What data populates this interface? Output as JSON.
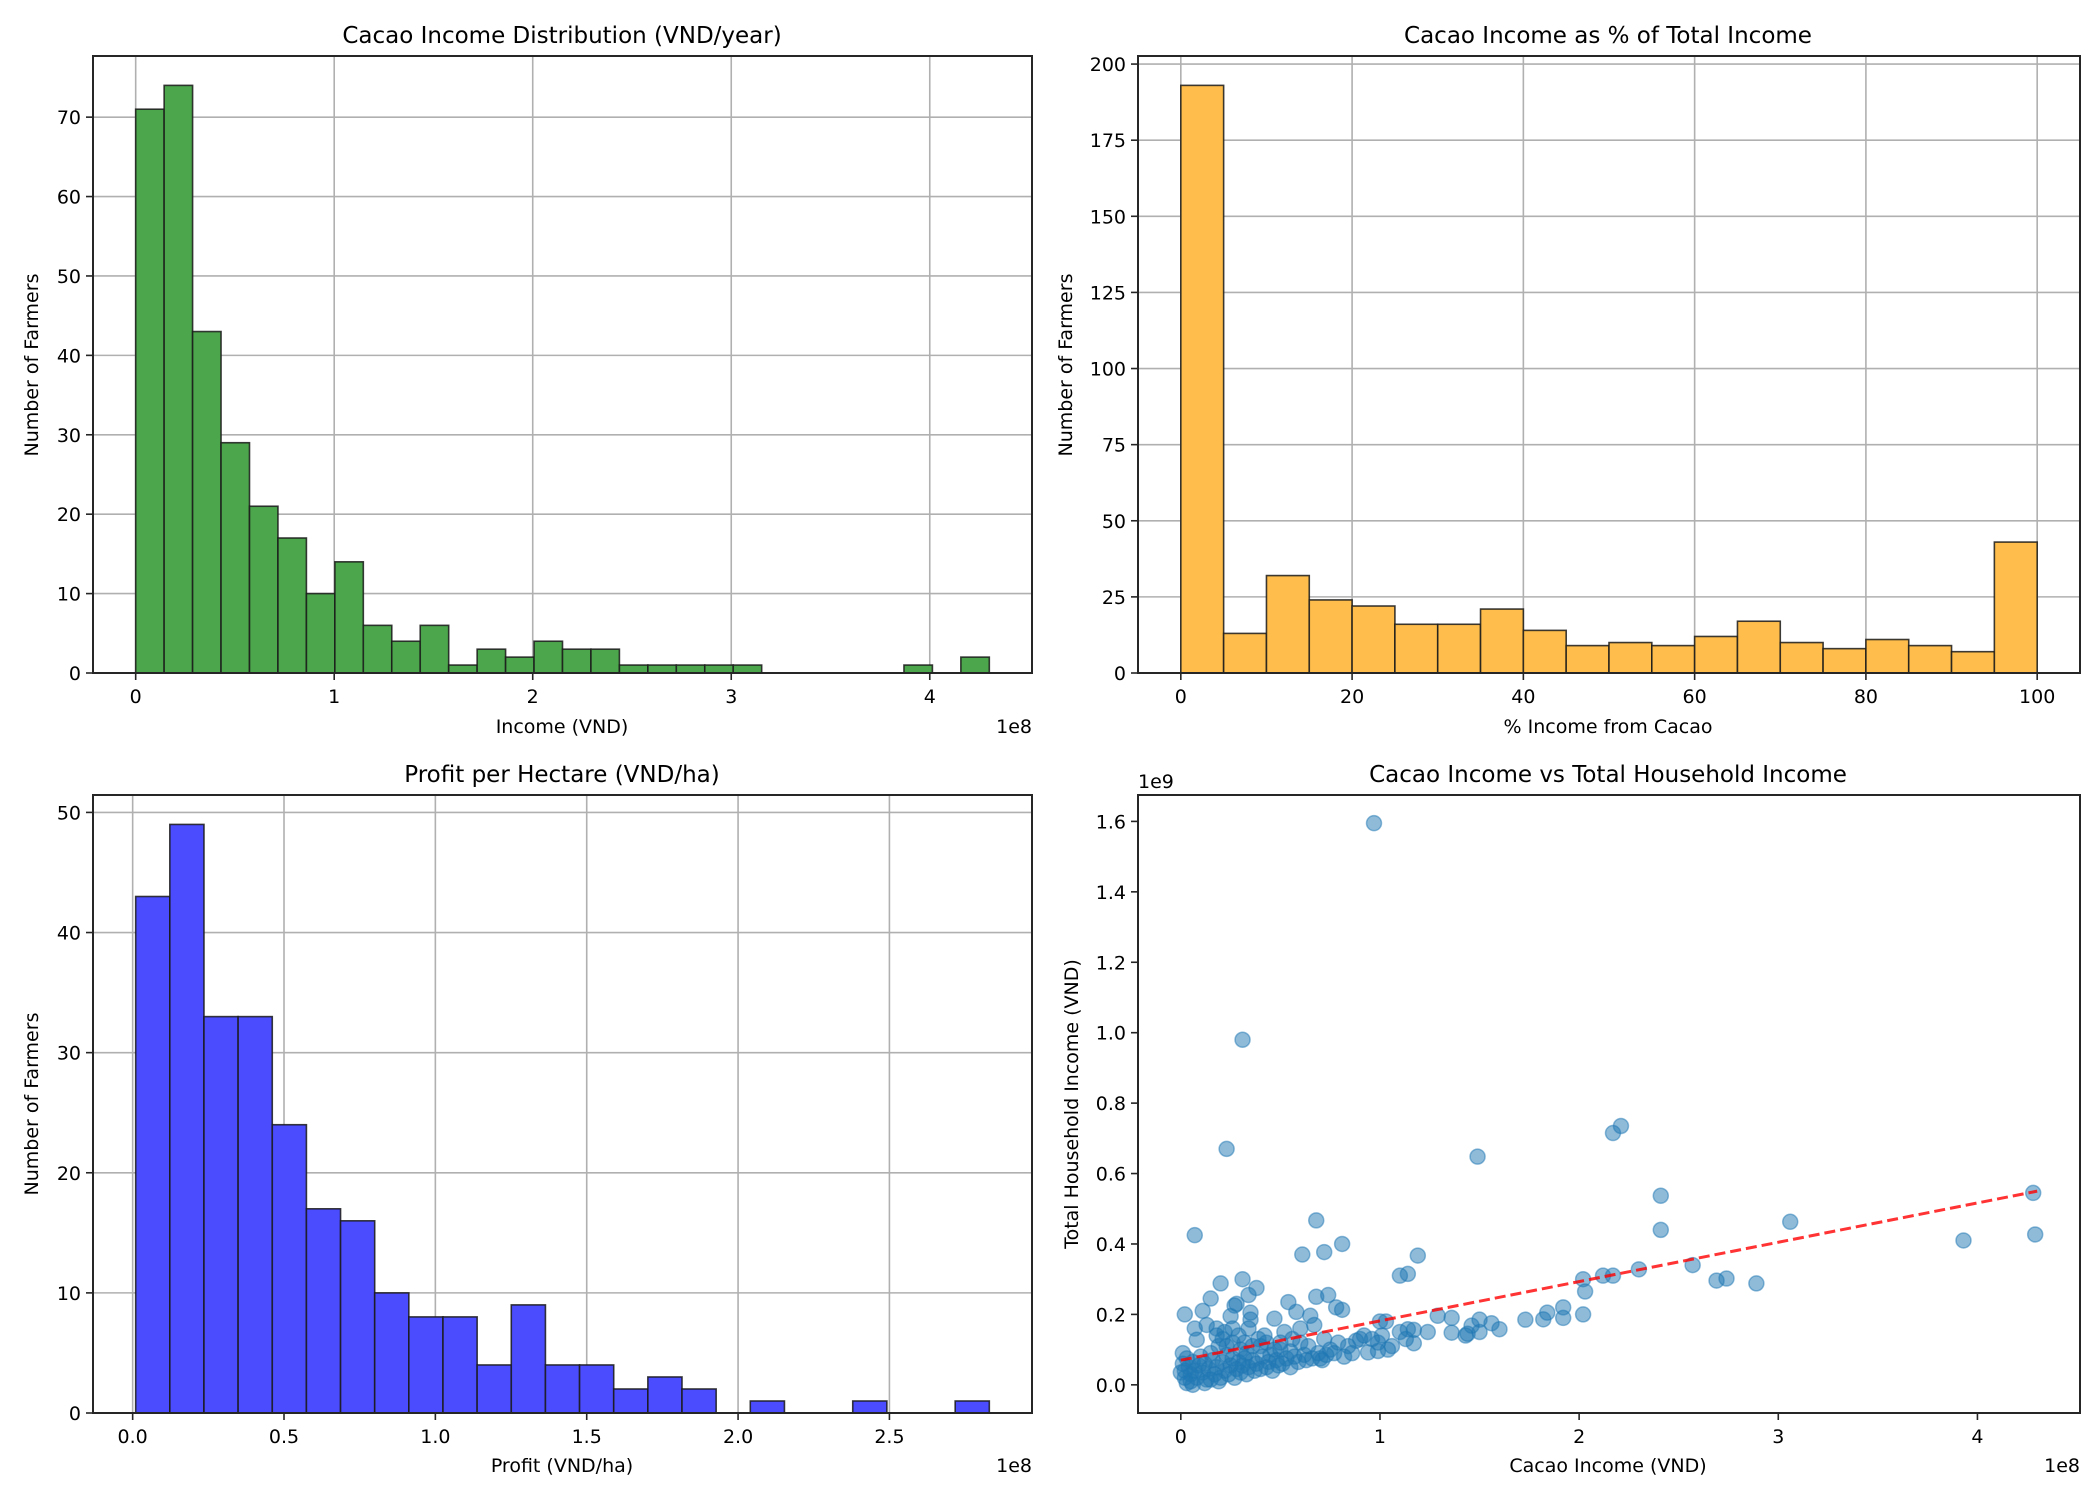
{
  "figure": {
    "background": "#ffffff"
  },
  "chart_data": [
    {
      "id": "income-hist",
      "type": "bar",
      "title": "Cacao Income Distribution (VND/year)",
      "xlabel": "Income (VND)",
      "ylabel": "Number of Farmers",
      "x_offset_label": "1e8",
      "x_scale": 100000000,
      "bin_start": 0.0,
      "bin_end": 4.3,
      "values": [
        71,
        74,
        43,
        29,
        21,
        17,
        10,
        14,
        6,
        4,
        6,
        1,
        3,
        2,
        4,
        3,
        3,
        1,
        1,
        1,
        1,
        1,
        0,
        0,
        0,
        0,
        0,
        1,
        0,
        2
      ],
      "xlim": [
        -0.215,
        4.515
      ],
      "ylim": [
        0,
        77.7
      ],
      "xticks": [
        0,
        1,
        2,
        3,
        4
      ],
      "xtick_labels": [
        "0",
        "1",
        "2",
        "3",
        "4"
      ],
      "yticks": [
        0,
        10,
        20,
        30,
        40,
        50,
        60,
        70
      ],
      "ytick_labels": [
        "0",
        "10",
        "20",
        "30",
        "40",
        "50",
        "60",
        "70"
      ],
      "color": "#4ca64c",
      "edge_color": "#1a1a1a",
      "grid": true
    },
    {
      "id": "pct-hist",
      "type": "bar",
      "title": "Cacao Income as % of Total Income",
      "xlabel": "% Income from Cacao",
      "ylabel": "Number of Farmers",
      "x_offset_label": "",
      "x_scale": 1,
      "bin_start": 0,
      "bin_end": 100,
      "values": [
        193,
        13,
        32,
        24,
        22,
        16,
        16,
        21,
        14,
        9,
        10,
        9,
        12,
        17,
        10,
        8,
        11,
        9,
        7,
        43
      ],
      "xlim": [
        -5,
        105
      ],
      "ylim": [
        0,
        202.65
      ],
      "xticks": [
        0,
        20,
        40,
        60,
        80,
        100
      ],
      "xtick_labels": [
        "0",
        "20",
        "40",
        "60",
        "80",
        "100"
      ],
      "yticks": [
        0,
        25,
        50,
        75,
        100,
        125,
        150,
        175,
        200
      ],
      "ytick_labels": [
        "0",
        "25",
        "50",
        "75",
        "100",
        "125",
        "150",
        "175",
        "200"
      ],
      "color": "#ffbe4c",
      "edge_color": "#1a1a1a",
      "grid": true
    },
    {
      "id": "profit-hist",
      "type": "bar",
      "title": "Profit per Hectare (VND/ha)",
      "xlabel": "Profit (VND/ha)",
      "ylabel": "Number of Farmers",
      "x_offset_label": "1e8",
      "x_scale": 100000000,
      "bin_start": 0.01,
      "bin_end": 2.83,
      "values": [
        43,
        49,
        33,
        33,
        24,
        17,
        16,
        10,
        8,
        8,
        4,
        9,
        4,
        4,
        2,
        3,
        2,
        0,
        1,
        0,
        0,
        1,
        0,
        0,
        1
      ],
      "xlim": [
        -0.131,
        2.971
      ],
      "ylim": [
        0,
        51.45
      ],
      "xticks": [
        0.0,
        0.5,
        1.0,
        1.5,
        2.0,
        2.5
      ],
      "xtick_labels": [
        "0.0",
        "0.5",
        "1.0",
        "1.5",
        "2.0",
        "2.5"
      ],
      "yticks": [
        0,
        10,
        20,
        30,
        40,
        50
      ],
      "ytick_labels": [
        "0",
        "10",
        "20",
        "30",
        "40",
        "50"
      ],
      "color": "#4c4cff",
      "edge_color": "#1a1a1a",
      "grid": true
    },
    {
      "id": "income-scatter",
      "type": "scatter",
      "title": "Cacao Income vs Total Household Income",
      "xlabel": "Cacao Income (VND)",
      "ylabel": "Total Household Income (VND)",
      "x_offset_label": "1e8",
      "y_offset_label": "1e9",
      "xlim": [
        -0.215,
        4.515
      ],
      "ylim": [
        -0.08,
        1.675
      ],
      "xticks": [
        0,
        1,
        2,
        3,
        4
      ],
      "xtick_labels": [
        "0",
        "1",
        "2",
        "3",
        "4"
      ],
      "yticks": [
        0.0,
        0.2,
        0.4,
        0.6,
        0.8,
        1.0,
        1.2,
        1.4,
        1.6
      ],
      "ytick_labels": [
        "0.0",
        "0.2",
        "0.4",
        "0.6",
        "0.8",
        "1.0",
        "1.2",
        "1.4",
        "1.6"
      ],
      "point_color": "#1f77b4",
      "point_alpha": 0.5,
      "grid": false,
      "trendline": {
        "color": "#ff0000",
        "style": "dashed",
        "x": [
          0.0,
          4.3
        ],
        "y": [
          0.07,
          0.55
        ]
      },
      "x_units": "1e8 VND",
      "y_units": "1e9 VND",
      "points": [
        [
          0.97,
          1.595
        ],
        [
          0.31,
          0.98
        ],
        [
          0.23,
          0.67
        ],
        [
          1.49,
          0.648
        ],
        [
          2.17,
          0.715
        ],
        [
          2.21,
          0.735
        ],
        [
          2.41,
          0.537
        ],
        [
          2.41,
          0.44
        ],
        [
          4.28,
          0.545
        ],
        [
          4.29,
          0.427
        ],
        [
          3.93,
          0.41
        ],
        [
          3.06,
          0.463
        ],
        [
          2.57,
          0.34
        ],
        [
          2.69,
          0.296
        ],
        [
          2.74,
          0.302
        ],
        [
          2.89,
          0.288
        ],
        [
          2.3,
          0.328
        ],
        [
          2.12,
          0.31
        ],
        [
          2.17,
          0.31
        ],
        [
          2.02,
          0.3
        ],
        [
          2.03,
          0.265
        ],
        [
          2.02,
          0.2
        ],
        [
          1.92,
          0.22
        ],
        [
          1.92,
          0.19
        ],
        [
          1.84,
          0.205
        ],
        [
          1.82,
          0.186
        ],
        [
          1.73,
          0.185
        ],
        [
          1.6,
          0.158
        ],
        [
          1.56,
          0.175
        ],
        [
          1.5,
          0.15
        ],
        [
          1.5,
          0.185
        ],
        [
          1.46,
          0.168
        ],
        [
          1.43,
          0.14
        ],
        [
          1.44,
          0.145
        ],
        [
          1.36,
          0.19
        ],
        [
          1.36,
          0.148
        ],
        [
          1.29,
          0.196
        ],
        [
          1.24,
          0.15
        ],
        [
          1.19,
          0.367
        ],
        [
          1.14,
          0.315
        ],
        [
          1.1,
          0.31
        ],
        [
          1.17,
          0.156
        ],
        [
          1.14,
          0.158
        ],
        [
          1.17,
          0.118
        ],
        [
          1.13,
          0.13
        ],
        [
          1.1,
          0.15
        ],
        [
          1.03,
          0.18
        ],
        [
          1.0,
          0.18
        ],
        [
          1.01,
          0.14
        ],
        [
          1.04,
          0.1
        ],
        [
          0.99,
          0.12
        ],
        [
          0.99,
          0.096
        ],
        [
          0.92,
          0.14
        ],
        [
          0.94,
          0.092
        ],
        [
          0.88,
          0.125
        ],
        [
          0.81,
          0.4
        ],
        [
          0.68,
          0.467
        ],
        [
          0.72,
          0.377
        ],
        [
          0.61,
          0.37
        ],
        [
          0.78,
          0.22
        ],
        [
          0.81,
          0.213
        ],
        [
          0.74,
          0.255
        ],
        [
          0.68,
          0.25
        ],
        [
          0.67,
          0.17
        ],
        [
          0.65,
          0.196
        ],
        [
          0.6,
          0.16
        ],
        [
          0.58,
          0.207
        ],
        [
          0.54,
          0.235
        ],
        [
          0.52,
          0.15
        ],
        [
          0.47,
          0.188
        ],
        [
          0.42,
          0.14
        ],
        [
          0.38,
          0.275
        ],
        [
          0.34,
          0.255
        ],
        [
          0.31,
          0.3
        ],
        [
          0.35,
          0.205
        ],
        [
          0.35,
          0.185
        ],
        [
          0.34,
          0.16
        ],
        [
          0.28,
          0.23
        ],
        [
          0.27,
          0.225
        ],
        [
          0.25,
          0.195
        ],
        [
          0.2,
          0.288
        ],
        [
          0.15,
          0.245
        ],
        [
          0.11,
          0.21
        ],
        [
          0.07,
          0.425
        ],
        [
          0.02,
          0.2
        ],
        [
          0.07,
          0.16
        ],
        [
          0.08,
          0.128
        ],
        [
          0.13,
          0.17
        ],
        [
          0.18,
          0.16
        ],
        [
          0.21,
          0.13
        ],
        [
          0.23,
          0.11
        ],
        [
          0.26,
          0.12
        ],
        [
          0.3,
          0.1
        ],
        [
          0.33,
          0.09
        ],
        [
          0.4,
          0.11
        ],
        [
          0.45,
          0.085
        ],
        [
          0.5,
          0.1
        ],
        [
          0.55,
          0.095
        ],
        [
          0.62,
          0.085
        ],
        [
          0.7,
          0.075
        ],
        [
          0.75,
          0.1
        ],
        [
          0.82,
          0.08
        ],
        [
          0.01,
          0.09
        ],
        [
          0.01,
          0.06
        ],
        [
          0.02,
          0.04
        ],
        [
          0.02,
          0.02
        ],
        [
          0.03,
          0.075
        ],
        [
          0.04,
          0.05
        ],
        [
          0.05,
          0.03
        ],
        [
          0.05,
          0.01
        ],
        [
          0.06,
          0.065
        ],
        [
          0.07,
          0.04
        ],
        [
          0.08,
          0.02
        ],
        [
          0.09,
          0.055
        ],
        [
          0.1,
          0.08
        ],
        [
          0.11,
          0.035
        ],
        [
          0.12,
          0.06
        ],
        [
          0.13,
          0.015
        ],
        [
          0.14,
          0.045
        ],
        [
          0.15,
          0.09
        ],
        [
          0.16,
          0.07
        ],
        [
          0.17,
          0.03
        ],
        [
          0.18,
          0.05
        ],
        [
          0.19,
          0.11
        ],
        [
          0.2,
          0.02
        ],
        [
          0.21,
          0.065
        ],
        [
          0.22,
          0.04
        ],
        [
          0.23,
          0.085
        ],
        [
          0.24,
          0.03
        ],
        [
          0.25,
          0.055
        ],
        [
          0.26,
          0.075
        ],
        [
          0.27,
          0.02
        ],
        [
          0.28,
          0.045
        ],
        [
          0.29,
          0.065
        ],
        [
          0.3,
          0.035
        ],
        [
          0.31,
          0.055
        ],
        [
          0.32,
          0.075
        ],
        [
          0.33,
          0.03
        ],
        [
          0.34,
          0.05
        ],
        [
          0.36,
          0.07
        ],
        [
          0.37,
          0.04
        ],
        [
          0.38,
          0.06
        ],
        [
          0.4,
          0.045
        ],
        [
          0.41,
          0.08
        ],
        [
          0.43,
          0.05
        ],
        [
          0.44,
          0.065
        ],
        [
          0.46,
          0.04
        ],
        [
          0.48,
          0.07
        ],
        [
          0.49,
          0.055
        ],
        [
          0.51,
          0.06
        ],
        [
          0.53,
          0.075
        ],
        [
          0.55,
          0.05
        ],
        [
          0.57,
          0.08
        ],
        [
          0.59,
          0.065
        ],
        [
          0.63,
          0.07
        ],
        [
          0.66,
          0.075
        ],
        [
          0.69,
          0.09
        ],
        [
          0.71,
          0.07
        ],
        [
          0.73,
          0.085
        ],
        [
          0.77,
          0.09
        ],
        [
          0.79,
          0.12
        ],
        [
          0.84,
          0.11
        ],
        [
          0.86,
          0.09
        ],
        [
          0.9,
          0.13
        ],
        [
          0.96,
          0.13
        ],
        [
          1.06,
          0.11
        ],
        [
          0.18,
          0.14
        ],
        [
          0.22,
          0.15
        ],
        [
          0.26,
          0.16
        ],
        [
          0.29,
          0.14
        ],
        [
          0.32,
          0.12
        ],
        [
          0.36,
          0.11
        ],
        [
          0.39,
          0.13
        ],
        [
          0.43,
          0.12
        ],
        [
          0.47,
          0.1
        ],
        [
          0.5,
          0.12
        ],
        [
          0.56,
          0.13
        ],
        [
          0.6,
          0.12
        ],
        [
          0.64,
          0.11
        ],
        [
          0.72,
          0.13
        ],
        [
          0.0,
          0.035
        ],
        [
          0.03,
          0.005
        ],
        [
          0.06,
          0.0
        ],
        [
          0.12,
          0.005
        ],
        [
          0.15,
          0.015
        ],
        [
          0.19,
          0.01
        ]
      ]
    }
  ]
}
